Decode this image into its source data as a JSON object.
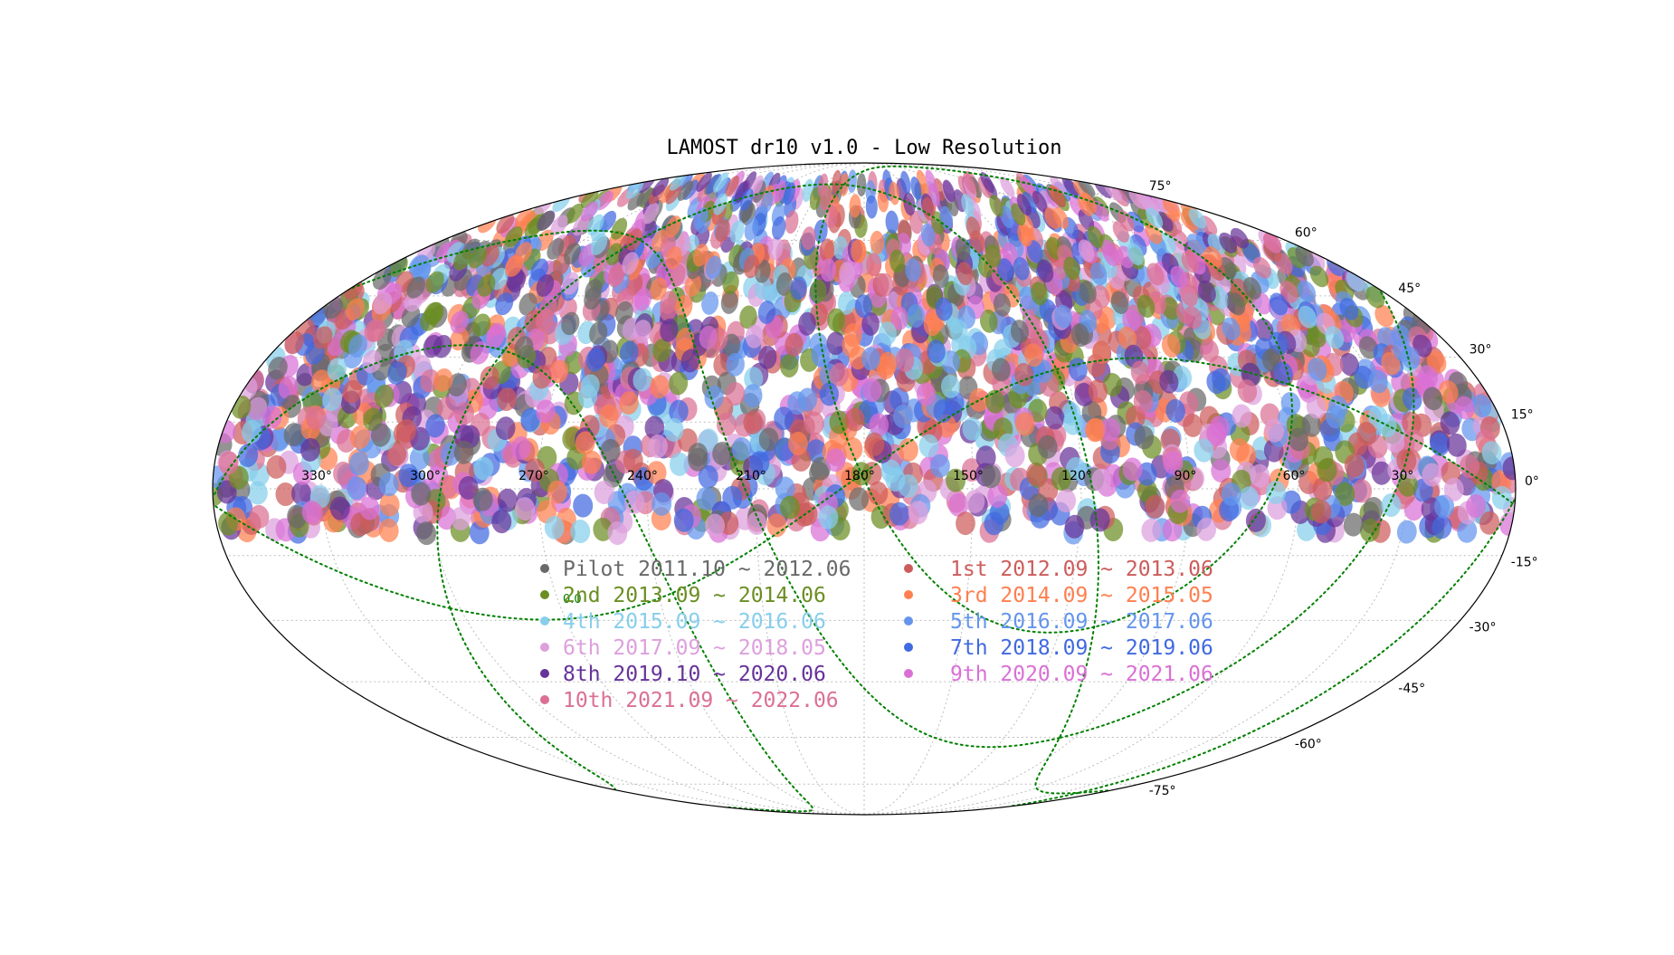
{
  "chart_data": {
    "type": "scatter",
    "projection": "mollweide",
    "title": "LAMOST dr10 v1.0 - Low Resolution",
    "ra_ticks": [
      "330°",
      "300°",
      "270°",
      "240°",
      "210°",
      "180°",
      "150°",
      "120°",
      "90°",
      "60°",
      "30°"
    ],
    "ra_tick_values": [
      330,
      300,
      270,
      240,
      210,
      180,
      150,
      120,
      90,
      60,
      30
    ],
    "dec_ticks": [
      "75°",
      "60°",
      "45°",
      "30°",
      "15°",
      "0°",
      "-15°",
      "-30°",
      "-45°",
      "-60°",
      "-75°"
    ],
    "dec_tick_values": [
      75,
      60,
      45,
      30,
      15,
      0,
      -15,
      -30,
      -45,
      -60,
      -75
    ],
    "grid": true,
    "galactic_plane_label": "0.0",
    "legend_location": "center",
    "series": [
      {
        "name": "Pilot 2011.10 ~ 2012.06",
        "color": "#696969"
      },
      {
        "name": "1st 2012.09 ~ 2013.06",
        "color": "#cd5c5c"
      },
      {
        "name": "2nd 2013.09 ~ 2014.06",
        "color": "#6b8e23"
      },
      {
        "name": "3rd 2014.09 ~ 2015.05",
        "color": "#ff7f50"
      },
      {
        "name": "4th 2015.09 ~ 2016.06",
        "color": "#87ceeb"
      },
      {
        "name": "5th 2016.09 ~ 2017.06",
        "color": "#6495ed"
      },
      {
        "name": "6th 2017.09 ~ 2018.05",
        "color": "#dda0dd"
      },
      {
        "name": "7th 2018.09 ~ 2019.06",
        "color": "#4169e1"
      },
      {
        "name": "8th 2019.10 ~ 2020.06",
        "color": "#663399"
      },
      {
        "name": "9th 2020.09 ~ 2021.06",
        "color": "#da70d6"
      },
      {
        "name": "10th 2021.09 ~ 2022.06",
        "color": "#db7093"
      }
    ],
    "dec_coverage": [
      -10,
      80
    ]
  }
}
